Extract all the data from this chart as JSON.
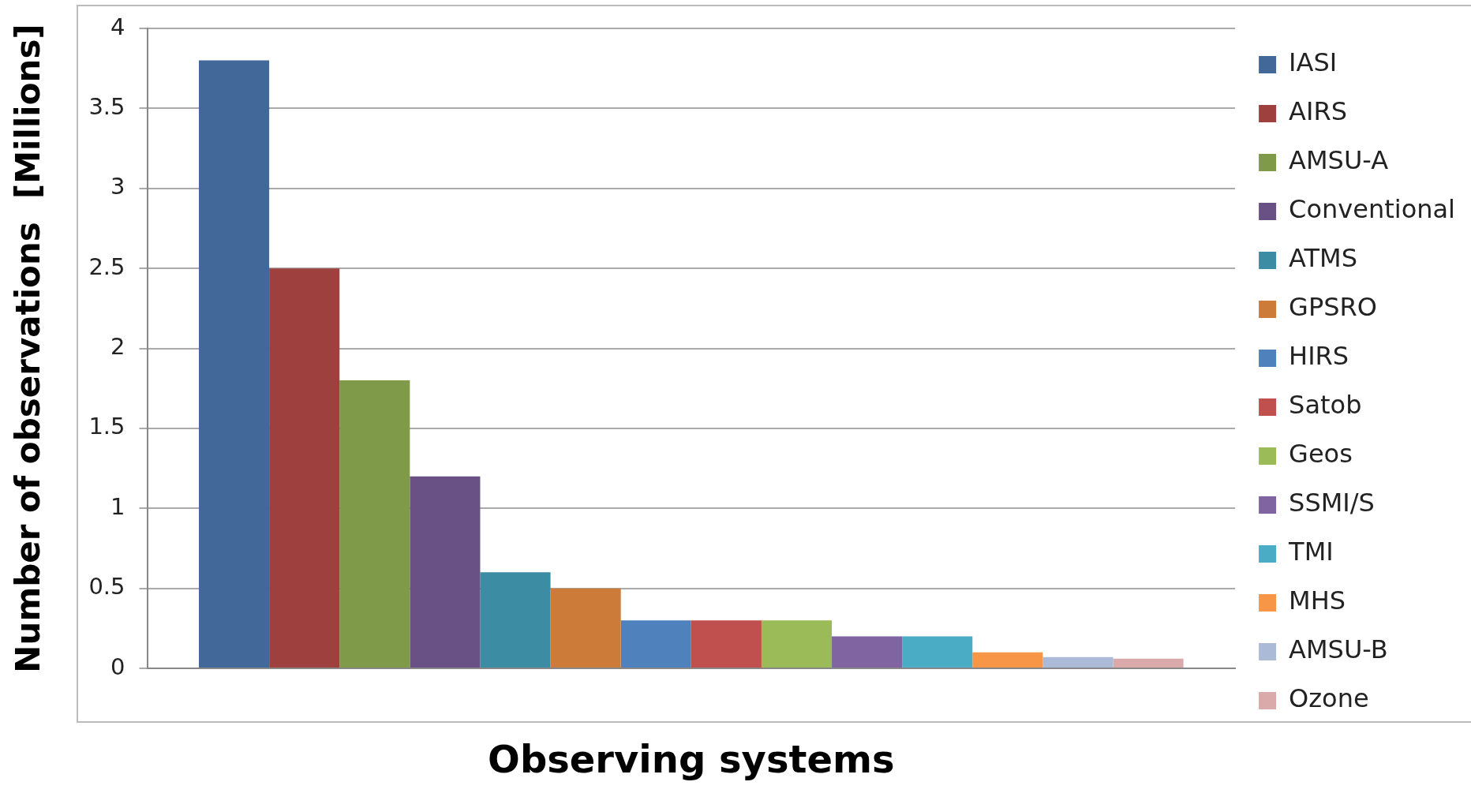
{
  "chart_data": {
    "type": "bar",
    "xlabel": "Observing systems",
    "ylabel": "Number of observations  [Millions]",
    "categories": [
      null
    ],
    "series": [
      {
        "name": "IASI",
        "color": "#426899",
        "values": [
          3.8
        ]
      },
      {
        "name": "AIRS",
        "color": "#9e413e",
        "values": [
          2.5
        ]
      },
      {
        "name": "AMSU-A",
        "color": "#7f9a48",
        "values": [
          1.8
        ]
      },
      {
        "name": "Conventional",
        "color": "#695185",
        "values": [
          1.2
        ]
      },
      {
        "name": "ATMS",
        "color": "#3c8da3",
        "values": [
          0.6
        ]
      },
      {
        "name": "GPSRO",
        "color": "#cc7b38",
        "values": [
          0.5
        ]
      },
      {
        "name": "HIRS",
        "color": "#4f81bd",
        "values": [
          0.3
        ]
      },
      {
        "name": "Satob",
        "color": "#c0504d",
        "values": [
          0.3
        ]
      },
      {
        "name": "Geos",
        "color": "#9bbb59",
        "values": [
          0.3
        ]
      },
      {
        "name": "SSMI/S",
        "color": "#8064a2",
        "values": [
          0.2
        ]
      },
      {
        "name": "TMI",
        "color": "#4bacc6",
        "values": [
          0.2
        ]
      },
      {
        "name": "MHS",
        "color": "#f79646",
        "values": [
          0.1
        ]
      },
      {
        "name": "AMSU-B",
        "color": "#aabad7",
        "values": [
          0.07
        ]
      },
      {
        "name": "Ozone",
        "color": "#d9aaa9",
        "values": [
          0.06
        ]
      }
    ],
    "ylim": [
      0,
      4
    ],
    "yticks": [
      0,
      0.5,
      1,
      1.5,
      2,
      2.5,
      3,
      3.5,
      4
    ],
    "grid": "y",
    "legend": "right"
  }
}
